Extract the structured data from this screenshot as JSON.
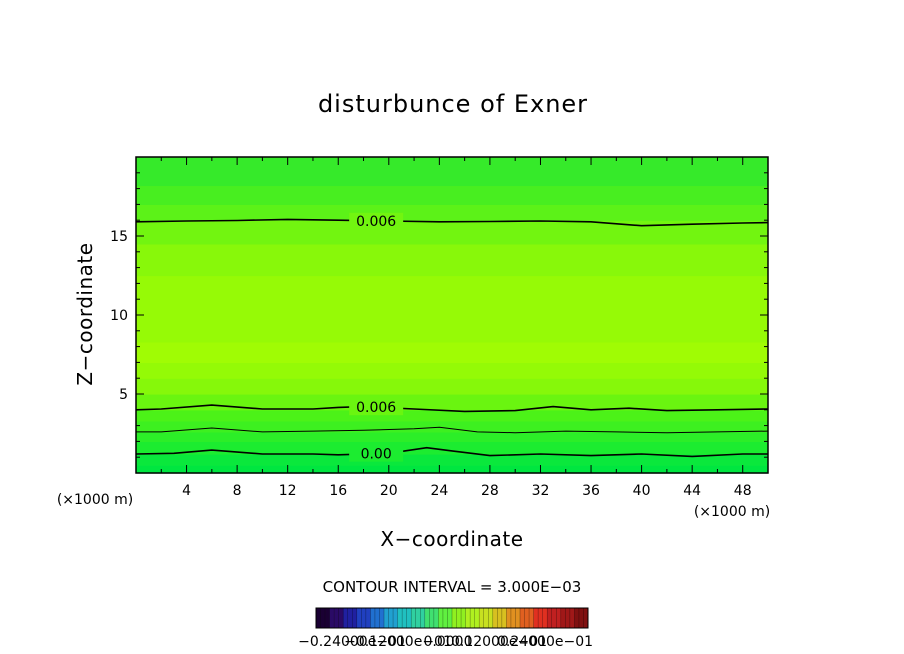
{
  "chart_data": {
    "type": "contour",
    "title": "disturbunce of Exner",
    "xlabel": "X−coordinate",
    "ylabel": "Z−coordinate",
    "x_unit": "(×1000 m)",
    "y_unit": "(×1000 m)",
    "xlim": [
      0,
      50
    ],
    "ylim": [
      0,
      20
    ],
    "x_ticks": [
      4,
      8,
      12,
      16,
      20,
      24,
      28,
      32,
      36,
      40,
      44,
      48
    ],
    "y_ticks": [
      5,
      10,
      15
    ],
    "contour_interval_label": "CONTOUR INTERVAL = 3.000E−03",
    "contours": [
      {
        "label": "0.006",
        "label_x": 19.0,
        "points": [
          [
            0,
            15.9
          ],
          [
            4,
            15.95
          ],
          [
            8,
            15.98
          ],
          [
            12,
            16.05
          ],
          [
            16,
            16.0
          ],
          [
            20,
            15.95
          ],
          [
            24,
            15.9
          ],
          [
            28,
            15.92
          ],
          [
            32,
            15.95
          ],
          [
            36,
            15.9
          ],
          [
            40,
            15.65
          ],
          [
            44,
            15.75
          ],
          [
            48,
            15.82
          ],
          [
            50,
            15.85
          ]
        ]
      },
      {
        "label": "0.006",
        "label_x": 19.0,
        "points": [
          [
            0,
            4.0
          ],
          [
            2,
            4.05
          ],
          [
            6,
            4.3
          ],
          [
            10,
            4.05
          ],
          [
            14,
            4.05
          ],
          [
            16,
            4.15
          ],
          [
            18,
            4.2
          ],
          [
            22,
            4.05
          ],
          [
            26,
            3.9
          ],
          [
            30,
            3.95
          ],
          [
            33,
            4.2
          ],
          [
            36,
            4.0
          ],
          [
            39,
            4.1
          ],
          [
            42,
            3.95
          ],
          [
            46,
            4.0
          ],
          [
            50,
            4.05
          ]
        ]
      },
      {
        "label": "",
        "points": [
          [
            0,
            2.6
          ],
          [
            2,
            2.6
          ],
          [
            6,
            2.85
          ],
          [
            10,
            2.6
          ],
          [
            14,
            2.65
          ],
          [
            18,
            2.7
          ],
          [
            22,
            2.8
          ],
          [
            24,
            2.9
          ],
          [
            27,
            2.6
          ],
          [
            30,
            2.55
          ],
          [
            34,
            2.65
          ],
          [
            38,
            2.6
          ],
          [
            42,
            2.55
          ],
          [
            46,
            2.6
          ],
          [
            50,
            2.65
          ]
        ]
      },
      {
        "label": "0.00",
        "label_x": 19.0,
        "points": [
          [
            0,
            1.2
          ],
          [
            3,
            1.25
          ],
          [
            6,
            1.45
          ],
          [
            10,
            1.2
          ],
          [
            14,
            1.2
          ],
          [
            16,
            1.15
          ],
          [
            20,
            1.25
          ],
          [
            23,
            1.6
          ],
          [
            25,
            1.4
          ],
          [
            28,
            1.1
          ],
          [
            32,
            1.2
          ],
          [
            36,
            1.1
          ],
          [
            40,
            1.2
          ],
          [
            44,
            1.05
          ],
          [
            48,
            1.2
          ],
          [
            50,
            1.2
          ]
        ]
      }
    ],
    "fill_bands": [
      {
        "z0": 0.0,
        "z1": 0.5,
        "color": "#00e640"
      },
      {
        "z0": 0.5,
        "z1": 1.2,
        "color": "#0ae83c"
      },
      {
        "z0": 1.2,
        "z1": 2.0,
        "color": "#1cec30"
      },
      {
        "z0": 2.0,
        "z1": 2.6,
        "color": "#2cee28"
      },
      {
        "z0": 2.6,
        "z1": 3.3,
        "color": "#3df020"
      },
      {
        "z0": 3.3,
        "z1": 4.0,
        "color": "#4cf218"
      },
      {
        "z0": 4.0,
        "z1": 5.0,
        "color": "#6af510"
      },
      {
        "z0": 5.0,
        "z1": 6.0,
        "color": "#86f80a"
      },
      {
        "z0": 6.0,
        "z1": 7.0,
        "color": "#94fa06"
      },
      {
        "z0": 7.0,
        "z1": 8.3,
        "color": "#a0fc04"
      },
      {
        "z0": 8.3,
        "z1": 12.5,
        "color": "#96fa06"
      },
      {
        "z0": 12.5,
        "z1": 14.5,
        "color": "#88f80a"
      },
      {
        "z0": 14.5,
        "z1": 16.0,
        "color": "#72f510"
      },
      {
        "z0": 16.0,
        "z1": 17.0,
        "color": "#5cf218"
      },
      {
        "z0": 17.0,
        "z1": 18.2,
        "color": "#48ee20"
      },
      {
        "z0": 18.2,
        "z1": 20.0,
        "color": "#36ea2a"
      }
    ],
    "colorbar": {
      "labels": [
        "−0.24000e−01",
        "−0.12000e−01",
        "0.0000",
        "0.12000e−01",
        "0.24000e−01"
      ],
      "colors": [
        "#1a0033",
        "#2a0a66",
        "#2020a0",
        "#2040c0",
        "#2070d0",
        "#20a0d0",
        "#20c0c0",
        "#30d0a0",
        "#40e070",
        "#60f040",
        "#90f020",
        "#b0f020",
        "#c8e020",
        "#d8c020",
        "#e09020",
        "#e06020",
        "#e03020",
        "#c02020",
        "#a01818",
        "#801010"
      ]
    }
  }
}
